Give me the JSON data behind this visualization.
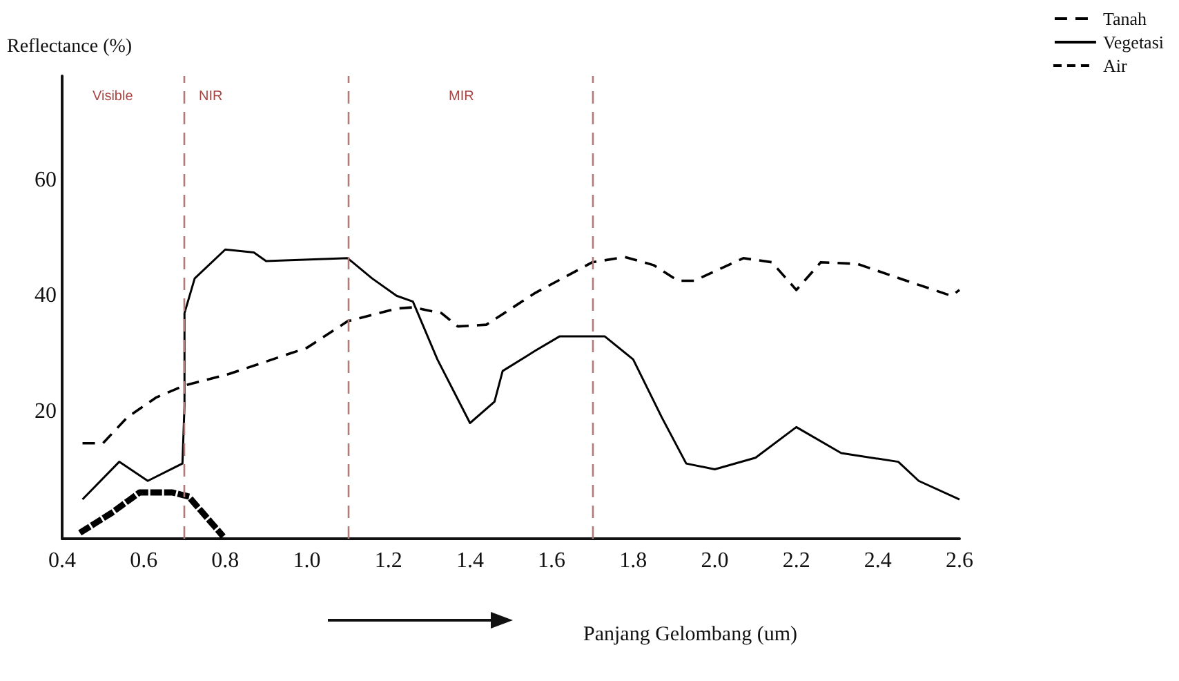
{
  "chart_data": {
    "type": "line",
    "ylabel": "Reflectance (%)",
    "xlabel": "Panjang Gelombang (um)",
    "xlim": [
      0.4,
      2.6
    ],
    "xticks": [
      0.4,
      0.6,
      0.8,
      {
        "value": 1,
        "label": "1.0"
      },
      1.2,
      1.4,
      1.6,
      1.8,
      {
        "value": 2,
        "label": "2.0"
      },
      2.2,
      2.4,
      2.6
    ],
    "ylim": [
      -2,
      78
    ],
    "yticks": [
      20,
      40,
      60
    ],
    "grid": false,
    "legend": "top right",
    "marker": "none",
    "series": [
      {
        "name": "Tanah",
        "color": "#000000",
        "line_style": "dashed",
        "x": [
          0.45,
          0.5,
          0.56,
          0.63,
          0.7,
          0.81,
          1.0,
          1.1,
          1.22,
          1.26,
          1.33,
          1.37,
          1.44,
          1.56,
          1.7,
          1.78,
          1.85,
          1.91,
          1.95,
          2.07,
          2.14,
          2.2,
          2.26,
          2.35,
          2.47,
          2.58,
          2.6
        ],
        "values": [
          14.5,
          14.5,
          19,
          22.4,
          24.5,
          26.5,
          31,
          35.6,
          37.8,
          38,
          37,
          34.7,
          35,
          40.5,
          45.8,
          46.7,
          45.3,
          42.6,
          42.6,
          46.5,
          45.8,
          41,
          45.8,
          45.5,
          42.6,
          40,
          41
        ]
      },
      {
        "name": "Vegetasi",
        "color": "#000000",
        "line_style": "solid",
        "x": [
          0.45,
          0.54,
          0.61,
          0.695,
          0.7,
          0.7,
          0.725,
          0.8,
          0.87,
          0.9,
          1.1,
          1.16,
          1.22,
          1.26,
          1.32,
          1.4,
          1.46,
          1.48,
          1.56,
          1.62,
          1.73,
          1.8,
          1.87,
          1.93,
          2.0,
          2.1,
          2.2,
          2.31,
          2.45,
          2.5,
          2.6
        ],
        "values": [
          4.8,
          11.3,
          8,
          11,
          21,
          37,
          43,
          48,
          47.5,
          46,
          46.5,
          43,
          40,
          39,
          29,
          18,
          21.7,
          27,
          30.5,
          33,
          33,
          29,
          19,
          11,
          10,
          12,
          17.3,
          12.8,
          11.3,
          8,
          4.8
        ]
      },
      {
        "name": "Air",
        "color": "#000000",
        "line_style": "dotted",
        "x": [
          0.45,
          0.52,
          0.59,
          0.67,
          0.71,
          0.79
        ],
        "values": [
          -0.7,
          2.4,
          6,
          6,
          5.3,
          -1.2
        ]
      }
    ],
    "ref_lines": [
      {
        "axis": "x",
        "value": 0.7,
        "color": "#b07a7a",
        "line_style": "dashed"
      },
      {
        "axis": "x",
        "value": 1.1,
        "color": "#b07a7a",
        "line_style": "dashed"
      },
      {
        "axis": "x",
        "value": 1.7,
        "color": "#b07a7a",
        "line_style": "dashed"
      }
    ],
    "annotations": [
      "Visible",
      "NIR",
      "MIR"
    ]
  }
}
